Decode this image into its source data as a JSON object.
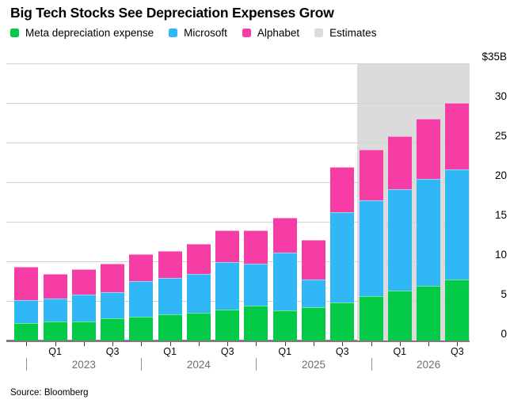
{
  "title": "Big Tech Stocks See Depreciation Expenses Grow",
  "legend": [
    {
      "label": "Meta depreciation expense",
      "color": "#03cb48"
    },
    {
      "label": "Microsoft",
      "color": "#30b7f5"
    },
    {
      "label": "Alphabet",
      "color": "#f53da5"
    },
    {
      "label": "Estimates",
      "color": "#dbdbdb"
    }
  ],
  "source": "Source: Bloomberg",
  "chart_data": {
    "type": "bar",
    "stacked": true,
    "title": "Big Tech Stocks See Depreciation Expenses Grow",
    "unit": "billions USD",
    "categories": [
      "Q4 2022",
      "Q1 2023",
      "Q2 2023",
      "Q3 2023",
      "Q4 2023",
      "Q1 2024",
      "Q2 2024",
      "Q3 2024",
      "Q4 2024",
      "Q1 2025",
      "Q2 2025",
      "Q3 2025",
      "Q4 2025",
      "Q1 2026",
      "Q2 2026",
      "Q3 2026"
    ],
    "series": [
      {
        "name": "Meta depreciation expense",
        "color": "#03cb48",
        "values": [
          2.2,
          2.4,
          2.4,
          2.8,
          3.0,
          3.3,
          3.5,
          3.9,
          4.4,
          3.8,
          4.2,
          4.8,
          5.6,
          6.3,
          6.9,
          7.7
        ]
      },
      {
        "name": "Microsoft",
        "color": "#30b7f5",
        "values": [
          2.9,
          2.9,
          3.4,
          3.3,
          4.5,
          4.6,
          4.9,
          6.0,
          5.3,
          7.3,
          3.5,
          11.4,
          12.1,
          12.8,
          13.5,
          13.9
        ]
      },
      {
        "name": "Alphabet",
        "color": "#f53da5",
        "values": [
          4.2,
          3.1,
          3.2,
          3.6,
          3.4,
          3.4,
          3.8,
          4.0,
          4.2,
          4.4,
          5.0,
          5.7,
          6.4,
          6.7,
          7.6,
          8.4
        ]
      }
    ],
    "estimates": {
      "label": "Estimates",
      "color": "#dbdbdb",
      "start_index": 12
    },
    "y_axis": {
      "side": "right",
      "max": 35,
      "min": 0,
      "grid": true,
      "ticks": [
        {
          "value": 35,
          "label": "$35B"
        },
        {
          "value": 30,
          "label": "30"
        },
        {
          "value": 25,
          "label": "25"
        },
        {
          "value": 20,
          "label": "20"
        },
        {
          "value": 15,
          "label": "15"
        },
        {
          "value": 10,
          "label": "10"
        },
        {
          "value": 5,
          "label": "5"
        },
        {
          "value": 0,
          "label": "0"
        }
      ]
    },
    "x_axis": {
      "quarter_labels": [
        {
          "index": 1,
          "label": "Q1"
        },
        {
          "index": 3,
          "label": "Q3"
        },
        {
          "index": 5,
          "label": "Q1"
        },
        {
          "index": 7,
          "label": "Q3"
        },
        {
          "index": 9,
          "label": "Q1"
        },
        {
          "index": 11,
          "label": "Q3"
        },
        {
          "index": 13,
          "label": "Q1"
        },
        {
          "index": 15,
          "label": "Q3"
        }
      ],
      "year_row": [
        {
          "label": "2023",
          "separator_index": 0,
          "center_index": 2
        },
        {
          "label": "2024",
          "separator_index": 4,
          "center_index": 6
        },
        {
          "label": "2025",
          "separator_index": 8,
          "center_index": 10
        },
        {
          "label": "2026",
          "separator_index": 12,
          "center_index": 14
        }
      ]
    }
  }
}
